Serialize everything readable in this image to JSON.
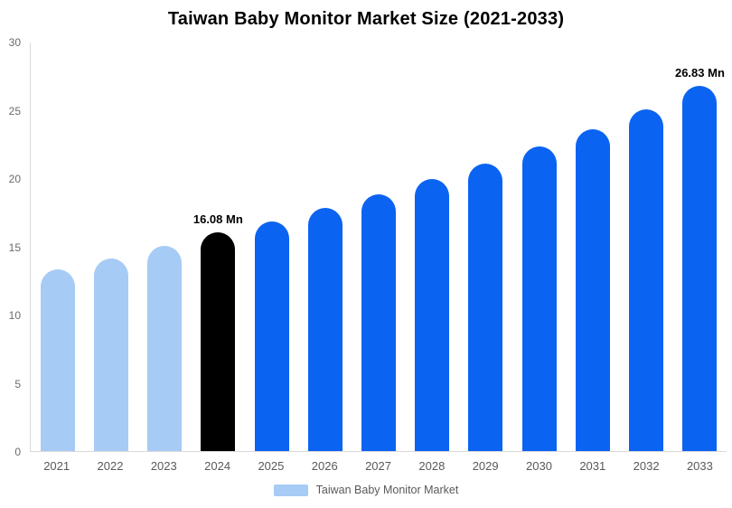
{
  "chart_data": {
    "type": "bar",
    "title": "Taiwan Baby Monitor Market Size (2021-2033)",
    "categories": [
      "2021",
      "2022",
      "2023",
      "2024",
      "2025",
      "2026",
      "2027",
      "2028",
      "2029",
      "2030",
      "2031",
      "2032",
      "2033"
    ],
    "values": [
      13.35,
      14.15,
      15.05,
      16.08,
      16.85,
      17.85,
      18.85,
      20.0,
      21.1,
      22.35,
      23.65,
      25.1,
      26.83
    ],
    "bar_colors": [
      "#A6CBF5",
      "#A6CBF5",
      "#A6CBF5",
      "#000000",
      "#0B63F2",
      "#0B63F2",
      "#0B63F2",
      "#0B63F2",
      "#0B63F2",
      "#0B63F2",
      "#0B63F2",
      "#0B63F2",
      "#0B63F2"
    ],
    "ylim": [
      0,
      30
    ],
    "yticks": [
      0,
      5,
      10,
      15,
      20,
      25,
      30
    ],
    "annotations": [
      {
        "index": 3,
        "text": "16.08 Mn"
      },
      {
        "index": 12,
        "text": "26.83 Mn"
      }
    ],
    "legend": {
      "label": "Taiwan Baby Monitor Market",
      "swatch_color": "#A6CBF5"
    },
    "xlabel": "",
    "ylabel": "",
    "grid": false,
    "legend_position": "bottom-center"
  }
}
